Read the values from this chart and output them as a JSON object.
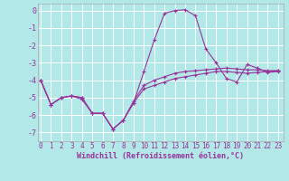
{
  "background_color": "#b2e8e8",
  "grid_color": "#ffffff",
  "line_color": "#993399",
  "xlabel": "Windchill (Refroidissement éolien,°C)",
  "xlabel_fontsize": 6.0,
  "ytick_labels": [
    "0",
    "-1",
    "-2",
    "-3",
    "-4",
    "-5",
    "-6",
    "-7"
  ],
  "ytick_vals": [
    0,
    -1,
    -2,
    -3,
    -4,
    -5,
    -6,
    -7
  ],
  "xtick_vals": [
    0,
    1,
    2,
    3,
    4,
    5,
    6,
    7,
    8,
    9,
    10,
    11,
    12,
    13,
    14,
    15,
    16,
    17,
    18,
    19,
    20,
    21,
    22,
    23
  ],
  "xlim": [
    -0.3,
    23.5
  ],
  "ylim": [
    -7.5,
    0.4
  ],
  "series1_x": [
    0,
    1,
    2,
    3,
    4,
    5,
    6,
    7,
    8,
    9,
    10,
    11,
    12,
    13,
    14,
    15,
    16,
    17,
    18,
    19,
    20,
    21,
    22,
    23
  ],
  "series1_y": [
    -4.0,
    -5.4,
    -5.0,
    -4.9,
    -5.1,
    -5.9,
    -5.9,
    -6.8,
    -6.3,
    -5.3,
    -4.5,
    -4.3,
    -4.1,
    -3.9,
    -3.8,
    -3.7,
    -3.6,
    -3.5,
    -3.5,
    -3.55,
    -3.6,
    -3.55,
    -3.5,
    -3.45
  ],
  "series2_x": [
    0,
    1,
    2,
    3,
    4,
    5,
    6,
    7,
    8,
    9,
    10,
    11,
    12,
    13,
    14,
    15,
    16,
    17,
    18,
    19,
    20,
    21,
    22,
    23
  ],
  "series2_y": [
    -4.0,
    -5.4,
    -5.0,
    -4.9,
    -5.0,
    -5.9,
    -5.9,
    -6.8,
    -6.3,
    -5.3,
    -3.5,
    -1.7,
    -0.15,
    0.0,
    0.05,
    -0.3,
    -2.2,
    -3.0,
    -3.9,
    -4.1,
    -3.1,
    -3.3,
    -3.55,
    -3.5
  ],
  "series3_x": [
    0,
    1,
    2,
    3,
    4,
    5,
    6,
    7,
    8,
    9,
    10,
    11,
    12,
    13,
    14,
    15,
    16,
    17,
    18,
    19,
    20,
    21,
    22,
    23
  ],
  "series3_y": [
    -4.0,
    -5.4,
    -5.0,
    -4.9,
    -5.0,
    -5.9,
    -5.9,
    -6.8,
    -6.3,
    -5.2,
    -4.3,
    -4.0,
    -3.8,
    -3.6,
    -3.5,
    -3.45,
    -3.4,
    -3.35,
    -3.3,
    -3.35,
    -3.4,
    -3.4,
    -3.45,
    -3.45
  ],
  "tick_fontsize": 5.5,
  "marker_size": 3.0,
  "line_width": 0.8
}
